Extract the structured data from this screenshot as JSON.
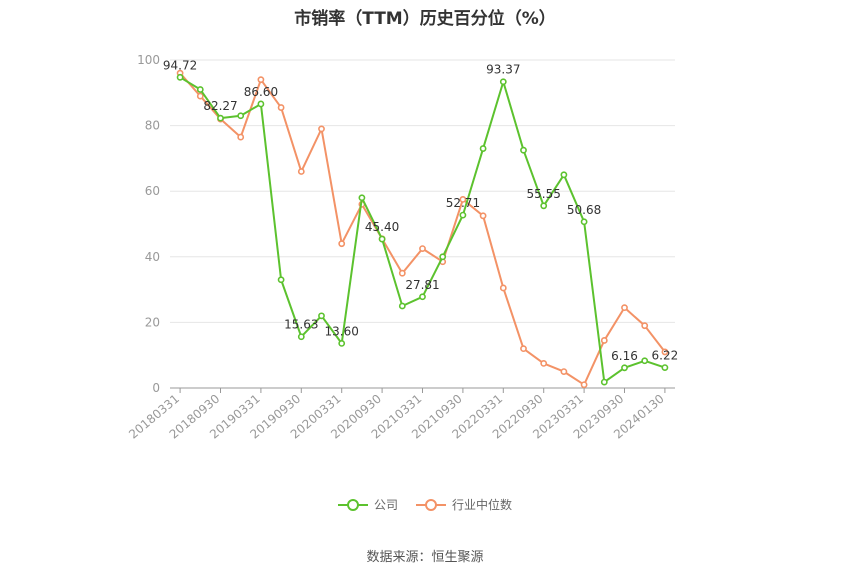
{
  "chart_data": {
    "type": "line",
    "title": "市销率（TTM）历史百分位（%）",
    "source": "数据来源：恒生聚源",
    "ylim": [
      0,
      100
    ],
    "yticks": [
      0,
      20,
      40,
      60,
      80,
      100
    ],
    "grid": true,
    "legend_position": "bottom",
    "x": [
      "20180331",
      "20180630",
      "20180930",
      "20181231",
      "20190331",
      "20190630",
      "20190930",
      "20191231",
      "20200331",
      "20200630",
      "20200930",
      "20201231",
      "20210331",
      "20210630",
      "20210930",
      "20211231",
      "20220331",
      "20220630",
      "20220930",
      "20221231",
      "20230331",
      "20230630",
      "20230930",
      "20231231",
      "20240130"
    ],
    "xtick_labels": [
      "20180331",
      "20180930",
      "20190331",
      "20190930",
      "20200331",
      "20200930",
      "20210331",
      "20210930",
      "20220331",
      "20220930",
      "20230331",
      "20230930",
      "20240130"
    ],
    "series": [
      {
        "name": "公司",
        "color": "#5cc22e",
        "values": [
          94.72,
          91,
          82.27,
          83,
          86.6,
          33,
          15.63,
          22,
          13.6,
          58,
          45.4,
          25,
          27.81,
          40,
          52.71,
          73,
          93.37,
          72.5,
          55.55,
          65,
          50.68,
          1.8,
          6.16,
          8.3,
          6.22
        ],
        "labels": {
          "0": "94.72",
          "2": "82.27",
          "4": "86.60",
          "6": "15.63",
          "8": "13.60",
          "10": "45.40",
          "12": "27.81",
          "14": "52.71",
          "16": "93.37",
          "18": "55.55",
          "20": "50.68",
          "22": "6.16",
          "24": "6.22"
        }
      },
      {
        "name": "行业中位数",
        "color": "#f39266",
        "values": [
          96,
          89,
          82,
          76.5,
          94,
          85.5,
          66,
          79,
          44,
          56,
          45.5,
          35,
          42.5,
          38.5,
          57.5,
          52.5,
          30.5,
          12,
          7.5,
          5,
          1,
          14.5,
          24.5,
          19,
          11
        ]
      }
    ]
  }
}
